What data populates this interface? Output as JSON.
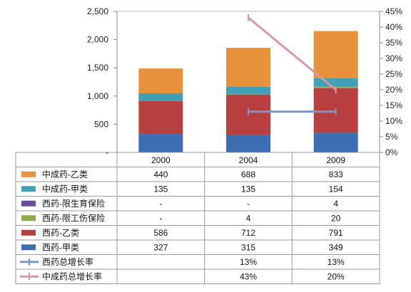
{
  "chart_data": {
    "type": "bar",
    "stacked": true,
    "categories": [
      "2000",
      "2004",
      "2009"
    ],
    "series": [
      {
        "name": "西药-甲类",
        "kind": "bar",
        "color": "#3d6db3",
        "values": [
          327,
          315,
          349
        ],
        "labels": [
          "327",
          "315",
          "349"
        ]
      },
      {
        "name": "西药-乙类",
        "kind": "bar",
        "color": "#b7403f",
        "values": [
          586,
          712,
          791
        ],
        "labels": [
          "586",
          "712",
          "791"
        ]
      },
      {
        "name": "西药-限工伤保险",
        "kind": "bar",
        "color": "#8faa4a",
        "values": [
          null,
          4,
          20
        ],
        "labels": [
          "-",
          "4",
          "20"
        ]
      },
      {
        "name": "西药-限生育保险",
        "kind": "bar",
        "color": "#6b4c9a",
        "values": [
          null,
          null,
          4
        ],
        "labels": [
          "-",
          "-",
          "4"
        ]
      },
      {
        "name": "中成药-甲类",
        "kind": "bar",
        "color": "#3fa0b8",
        "values": [
          135,
          135,
          154
        ],
        "labels": [
          "135",
          "135",
          "154"
        ]
      },
      {
        "name": "中成药-乙类",
        "kind": "bar",
        "color": "#e8913b",
        "values": [
          440,
          688,
          833
        ],
        "labels": [
          "440",
          "688",
          "833"
        ]
      },
      {
        "name": "西药总增长率",
        "kind": "line",
        "axis": "right",
        "color": "#7b96c8",
        "values": [
          null,
          13,
          13
        ],
        "labels": [
          "",
          "13%",
          "13%"
        ]
      },
      {
        "name": "中成药总增长率",
        "kind": "line",
        "axis": "right",
        "color": "#d69aa6",
        "values": [
          null,
          43,
          20
        ],
        "labels": [
          "",
          "43%",
          "20%"
        ]
      }
    ],
    "table_rows": [
      "中成药-乙类",
      "中成药-甲类",
      "西药-限生育保险",
      "西药-限工伤保险",
      "西药-乙类",
      "西药-甲类",
      "西药总增长率",
      "中成药总增长率"
    ],
    "left_axis": {
      "ylim": [
        0,
        2500
      ],
      "ticks": [
        0,
        500,
        1000,
        1500,
        2000,
        2500
      ],
      "tick_labels": [
        "-",
        "500",
        "1,000",
        "1,500",
        "2,000",
        "2,500"
      ]
    },
    "right_axis": {
      "ylim": [
        0,
        45
      ],
      "ticks": [
        0,
        5,
        10,
        15,
        20,
        25,
        30,
        35,
        40,
        45
      ],
      "tick_labels": [
        "0%",
        "5%",
        "10%",
        "15%",
        "20%",
        "25%",
        "30%",
        "35%",
        "40%",
        "45%"
      ]
    },
    "grid": false,
    "legend": "data-table-below"
  }
}
